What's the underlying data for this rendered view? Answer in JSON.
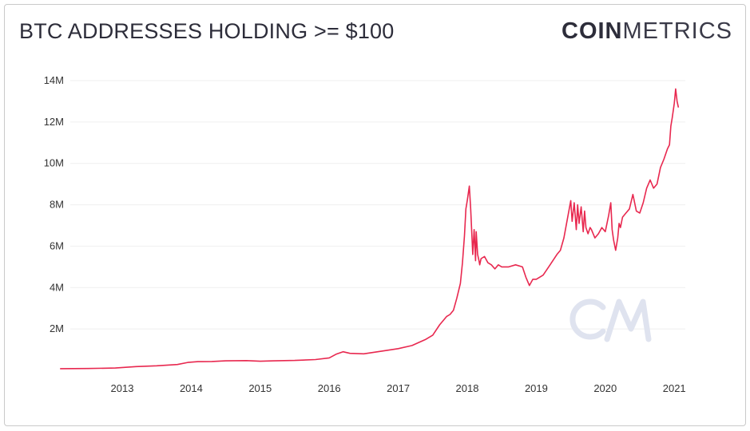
{
  "chart_data": {
    "type": "line",
    "title": "BTC ADDRESSES HOLDING >= $100",
    "xlabel": "",
    "ylabel": "",
    "ylim": [
      0,
      14000000
    ],
    "y_ticks": [
      "2M",
      "4M",
      "6M",
      "8M",
      "10M",
      "12M",
      "14M"
    ],
    "x_ticks": [
      "2013",
      "2014",
      "2015",
      "2016",
      "2017",
      "2018",
      "2019",
      "2020",
      "2021"
    ],
    "grid": "horizontal",
    "color": "#e8284f",
    "series": [
      {
        "x": [
          2012.1,
          2012.5,
          2012.9,
          2013.2,
          2013.5,
          2013.8,
          2013.95,
          2014.1,
          2014.3,
          2014.5,
          2014.8,
          2015.0,
          2015.2,
          2015.5,
          2015.8,
          2016.0,
          2016.1,
          2016.2,
          2016.3,
          2016.5,
          2016.8,
          2017.0,
          2017.2,
          2017.3,
          2017.4,
          2017.5,
          2017.6,
          2017.7,
          2017.75,
          2017.8,
          2017.85,
          2017.9,
          2017.93,
          2017.96,
          2017.98,
          2018.0,
          2018.03,
          2018.05,
          2018.08,
          2018.1,
          2018.12,
          2018.13,
          2018.15,
          2018.17,
          2018.18,
          2018.2,
          2018.25,
          2018.3,
          2018.35,
          2018.4,
          2018.45,
          2018.5,
          2018.6,
          2018.7,
          2018.8,
          2018.85,
          2018.9,
          2018.95,
          2019.0,
          2019.1,
          2019.2,
          2019.3,
          2019.35,
          2019.4,
          2019.45,
          2019.5,
          2019.52,
          2019.55,
          2019.58,
          2019.6,
          2019.62,
          2019.65,
          2019.68,
          2019.7,
          2019.72,
          2019.75,
          2019.78,
          2019.8,
          2019.85,
          2019.9,
          2019.95,
          2020.0,
          2020.05,
          2020.08,
          2020.1,
          2020.12,
          2020.15,
          2020.18,
          2020.2,
          2020.22,
          2020.25,
          2020.3,
          2020.35,
          2020.4,
          2020.45,
          2020.5,
          2020.55,
          2020.6,
          2020.65,
          2020.7,
          2020.75,
          2020.8,
          2020.85,
          2020.9,
          2020.93,
          2020.95,
          2020.97,
          2021.0,
          2021.02,
          2021.04,
          2021.06
        ],
        "y": [
          80000,
          90000,
          110000,
          180000,
          220000,
          280000,
          380000,
          420000,
          430000,
          460000,
          470000,
          440000,
          460000,
          480000,
          520000,
          600000,
          780000,
          900000,
          820000,
          800000,
          950000,
          1050000,
          1200000,
          1350000,
          1500000,
          1700000,
          2200000,
          2600000,
          2700000,
          2900000,
          3500000,
          4200000,
          5200000,
          6500000,
          7800000,
          8200000,
          8900000,
          7800000,
          5600000,
          6800000,
          5300000,
          6700000,
          5600000,
          5300000,
          5100000,
          5400000,
          5500000,
          5200000,
          5100000,
          4900000,
          5100000,
          5000000,
          5000000,
          5100000,
          5000000,
          4500000,
          4100000,
          4400000,
          4400000,
          4600000,
          5100000,
          5600000,
          5800000,
          6400000,
          7300000,
          8200000,
          7200000,
          8100000,
          6800000,
          8000000,
          7100000,
          7900000,
          6700000,
          7700000,
          6900000,
          6600000,
          6900000,
          6800000,
          6400000,
          6600000,
          6900000,
          6700000,
          7500000,
          8100000,
          6800000,
          6300000,
          5800000,
          6400000,
          7100000,
          6900000,
          7400000,
          7600000,
          7800000,
          8500000,
          7700000,
          7600000,
          8100000,
          8800000,
          9200000,
          8800000,
          9000000,
          9800000,
          10200000,
          10700000,
          10900000,
          11800000,
          12200000,
          12900000,
          13600000,
          13000000,
          12700000
        ]
      }
    ]
  },
  "logo": {
    "bold": "COIN",
    "light": "METRICS"
  }
}
